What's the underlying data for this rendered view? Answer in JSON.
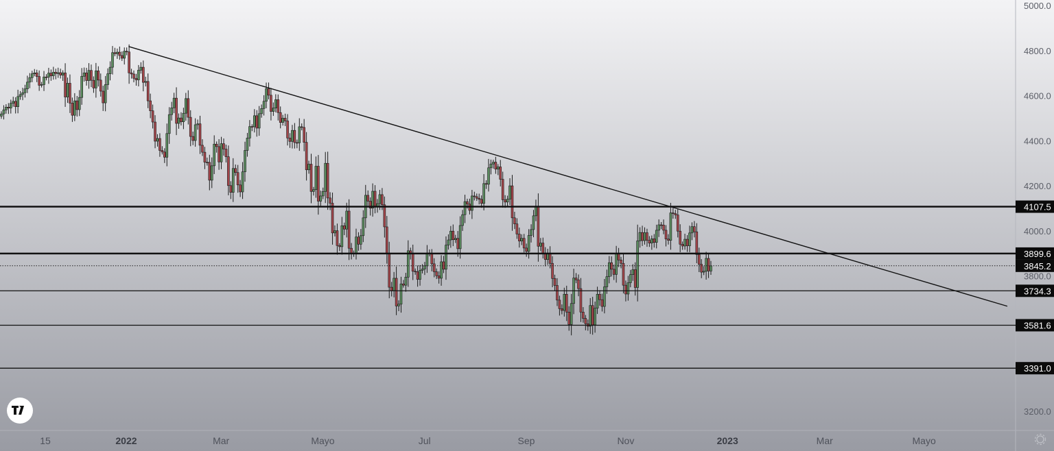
{
  "chart_data": {
    "type": "candlestick",
    "start_date": "2021-10-19",
    "end_date": "2022-12-23",
    "closes": [
      4519,
      4537,
      4549,
      4545,
      4566,
      4575,
      4551,
      4596,
      4605,
      4613,
      4630,
      4660,
      4680,
      4697,
      4701,
      4685,
      4646,
      4649,
      4683,
      4682,
      4700,
      4688,
      4704,
      4698,
      4702,
      4691,
      4701,
      4594,
      4655,
      4567,
      4513,
      4577,
      4538,
      4592,
      4686,
      4701,
      4667,
      4712,
      4668,
      4634,
      4710,
      4669,
      4620,
      4568,
      4649,
      4697,
      4726,
      4791,
      4786,
      4793,
      4778,
      4766,
      4797,
      4794,
      4701,
      4696,
      4677,
      4670,
      4713,
      4726,
      4659,
      4663,
      4577,
      4533,
      4483,
      4398,
      4410,
      4357,
      4350,
      4327,
      4432,
      4516,
      4546,
      4589,
      4477,
      4501,
      4484,
      4522,
      4587,
      4504,
      4419,
      4401,
      4471,
      4475,
      4380,
      4349,
      4305,
      4304,
      4225,
      4289,
      4385,
      4374,
      4306,
      4387,
      4363,
      4329,
      4201,
      4171,
      4277,
      4259,
      4204,
      4173,
      4262,
      4357,
      4412,
      4463,
      4462,
      4511,
      4456,
      4520,
      4543,
      4575,
      4631,
      4602,
      4530,
      4545,
      4582,
      4525,
      4481,
      4500,
      4488,
      4412,
      4397,
      4446,
      4392,
      4391,
      4462,
      4459,
      4393,
      4271,
      4296,
      4175,
      4183,
      4287,
      4132,
      4155,
      4175,
      4300,
      4146,
      4123,
      3991,
      4001,
      3935,
      3930,
      4023,
      4008,
      4088,
      3923,
      3901,
      3901,
      3973,
      3941,
      3979,
      4058,
      4158,
      4132,
      4101,
      4176,
      4108,
      4121,
      4161,
      4116,
      4018,
      3901,
      3750,
      3735,
      3790,
      3667,
      3675,
      3765,
      3759,
      3795,
      3912,
      3901,
      3821,
      3819,
      3785,
      3825,
      3831,
      3845,
      3902,
      3899,
      3854,
      3819,
      3801,
      3790,
      3863,
      3830,
      3937,
      3960,
      3999,
      3961,
      3967,
      3921,
      4024,
      4072,
      4130,
      4119,
      4091,
      4155,
      4152,
      4145,
      4140,
      4122,
      4210,
      4207,
      4280,
      4297,
      4305,
      4274,
      4284,
      4229,
      4138,
      4128,
      4141,
      4200,
      4058,
      4031,
      3986,
      3955,
      3967,
      3924,
      3909,
      3980,
      4006,
      4067,
      4110,
      3932,
      3946,
      3901,
      3873,
      3900,
      3856,
      3789,
      3758,
      3693,
      3655,
      3647,
      3719,
      3640,
      3585,
      3678,
      3791,
      3783,
      3744,
      3640,
      3612,
      3588,
      3577,
      3669,
      3583,
      3657,
      3719,
      3695,
      3665,
      3752,
      3797,
      3859,
      3830,
      3807,
      3901,
      3871,
      3856,
      3759,
      3720,
      3770,
      3806,
      3828,
      3749,
      3956,
      3993,
      3957,
      3992,
      3958,
      3946,
      3965,
      3949,
      4003,
      4027,
      4026,
      4003,
      3964,
      3958,
      4080,
      4077,
      4071,
      3999,
      3941,
      3933,
      3963,
      3934,
      3991,
      4019,
      3996,
      3895,
      3852,
      3817,
      3821,
      3878,
      3822,
      3845
    ],
    "ylim": [
      3115,
      5024
    ],
    "y_ticks": [
      "5000.0",
      "4800.0",
      "4600.0",
      "4400.0",
      "4200.0",
      "4000.0",
      "3800.0",
      "3200.0"
    ],
    "y_tick_values": [
      5000,
      4800,
      4600,
      4400,
      4200,
      4000,
      3800,
      3200
    ],
    "x_ticks": [
      {
        "label": "15",
        "date": "2021-11-15",
        "bold": false
      },
      {
        "label": "2022",
        "date": "2022-01-03",
        "bold": true
      },
      {
        "label": "Mar",
        "date": "2022-03-01",
        "bold": false
      },
      {
        "label": "Mayo",
        "date": "2022-05-02",
        "bold": false
      },
      {
        "label": "Jul",
        "date": "2022-07-01",
        "bold": false
      },
      {
        "label": "Sep",
        "date": "2022-09-01",
        "bold": false
      },
      {
        "label": "Nov",
        "date": "2022-11-01",
        "bold": false
      },
      {
        "label": "2023",
        "date": "2023-01-02",
        "bold": true
      },
      {
        "label": "Mar",
        "date": "2023-03-01",
        "bold": false
      },
      {
        "label": "Mayo",
        "date": "2023-05-01",
        "bold": false
      }
    ],
    "horizontal_levels": [
      {
        "label": "4107.5",
        "price": 4107.5,
        "weight": "thick"
      },
      {
        "label": "3899.6",
        "price": 3899.6,
        "weight": "thick"
      },
      {
        "label": "3734.3",
        "price": 3734.3,
        "weight": "thin"
      },
      {
        "label": "3581.6",
        "price": 3581.6,
        "weight": "thin"
      },
      {
        "label": "3391.0",
        "price": 3391.0,
        "weight": "thin"
      }
    ],
    "last_price": {
      "label": "3845.2",
      "price": 3845.2
    },
    "trendline": [
      {
        "date": "2022-01-04",
        "price": 4818
      },
      {
        "date": "2023-06-20",
        "price": 3666
      }
    ],
    "colors": {
      "up": "#5b8c5f",
      "down": "#a4464b",
      "outline": "#1a1a1a",
      "line": "#111111"
    },
    "grid": false
  },
  "branding": {
    "logo": "TV"
  },
  "icons": {
    "settings": "gear-icon"
  }
}
